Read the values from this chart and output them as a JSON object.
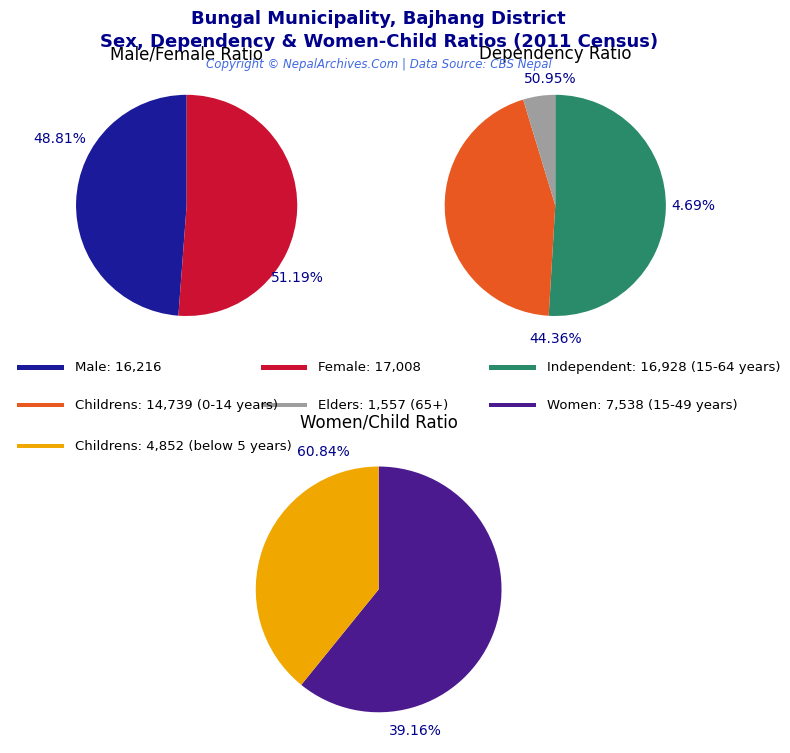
{
  "title_line1": "Bungal Municipality, Bajhang District",
  "title_line2": "Sex, Dependency & Women-Child Ratios (2011 Census)",
  "copyright": "Copyright © NepalArchives.Com | Data Source: CBS Nepal",
  "pie1": {
    "title": "Male/Female Ratio",
    "values": [
      48.81,
      51.19
    ],
    "labels": [
      "48.81%",
      "51.19%"
    ],
    "colors": [
      "#1a1a9a",
      "#cc1133"
    ],
    "startangle": 90,
    "counterclock": true
  },
  "pie2": {
    "title": "Dependency Ratio",
    "values": [
      50.95,
      44.36,
      4.69
    ],
    "labels": [
      "50.95%",
      "44.36%",
      "4.69%"
    ],
    "colors": [
      "#2a8b6a",
      "#e85820",
      "#9e9e9e"
    ],
    "startangle": 90,
    "counterclock": false
  },
  "pie3": {
    "title": "Women/Child Ratio",
    "values": [
      60.84,
      39.16
    ],
    "labels": [
      "60.84%",
      "39.16%"
    ],
    "colors": [
      "#4b1a8e",
      "#f0a800"
    ],
    "startangle": 90,
    "counterclock": false
  },
  "legend_items": [
    {
      "label": "Male: 16,216",
      "color": "#1a1a9a"
    },
    {
      "label": "Female: 17,008",
      "color": "#cc1133"
    },
    {
      "label": "Independent: 16,928 (15-64 years)",
      "color": "#2a8b6a"
    },
    {
      "label": "Childrens: 14,739 (0-14 years)",
      "color": "#e85820"
    },
    {
      "label": "Elders: 1,557 (65+)",
      "color": "#9e9e9e"
    },
    {
      "label": "Women: 7,538 (15-49 years)",
      "color": "#4b1a8e"
    },
    {
      "label": "Childrens: 4,852 (below 5 years)",
      "color": "#f0a800"
    }
  ],
  "title_color": "#00008B",
  "copyright_color": "#4169E1",
  "label_color": "#00008B",
  "bg_color": "#ffffff"
}
